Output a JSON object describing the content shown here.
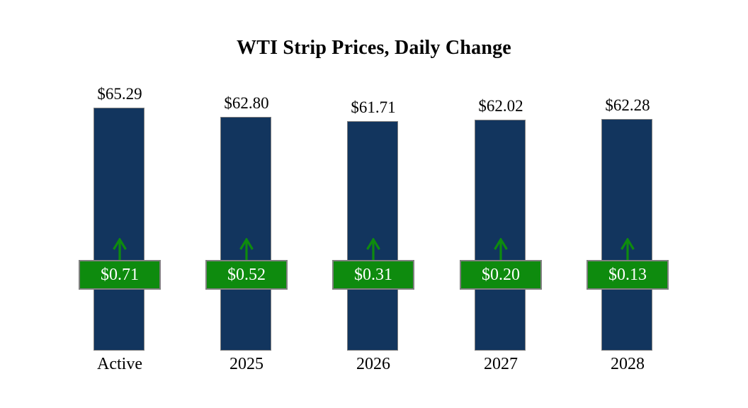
{
  "title": "WTI Strip Prices, Daily Change",
  "chart_data": {
    "type": "bar",
    "title": "WTI Strip Prices, Daily Change",
    "categories": [
      "Active",
      "2025",
      "2026",
      "2027",
      "2028"
    ],
    "series": [
      {
        "name": "Strip Price",
        "values": [
          65.29,
          62.8,
          61.71,
          62.02,
          62.28
        ]
      },
      {
        "name": "Daily Change",
        "values": [
          0.71,
          0.52,
          0.31,
          0.2,
          0.13
        ]
      }
    ],
    "bars": [
      {
        "category": "Active",
        "price": 65.29,
        "price_label": "$65.29",
        "change": 0.71,
        "change_label": "$0.71"
      },
      {
        "category": "2025",
        "price": 62.8,
        "price_label": "$62.80",
        "change": 0.52,
        "change_label": "$0.52"
      },
      {
        "category": "2026",
        "price": 61.71,
        "price_label": "$61.71",
        "change": 0.31,
        "change_label": "$0.31"
      },
      {
        "category": "2027",
        "price": 62.02,
        "price_label": "$62.02",
        "change": 0.2,
        "change_label": "$0.20"
      },
      {
        "category": "2028",
        "price": 62.28,
        "price_label": "$62.28",
        "change": 0.13,
        "change_label": "$0.13"
      }
    ],
    "baseline": 0,
    "axes_hidden": true,
    "grid": "off",
    "legend_position": "none",
    "colors": {
      "background": "#ffffff",
      "bar_fill": "#12355e",
      "bar_border": "#7f7f7f",
      "change_box_fill": "#0e8b0e",
      "change_box_border": "#808080",
      "change_text": "#ffffff",
      "arrow": "#0e8b0e",
      "label_text": "#000000"
    }
  }
}
